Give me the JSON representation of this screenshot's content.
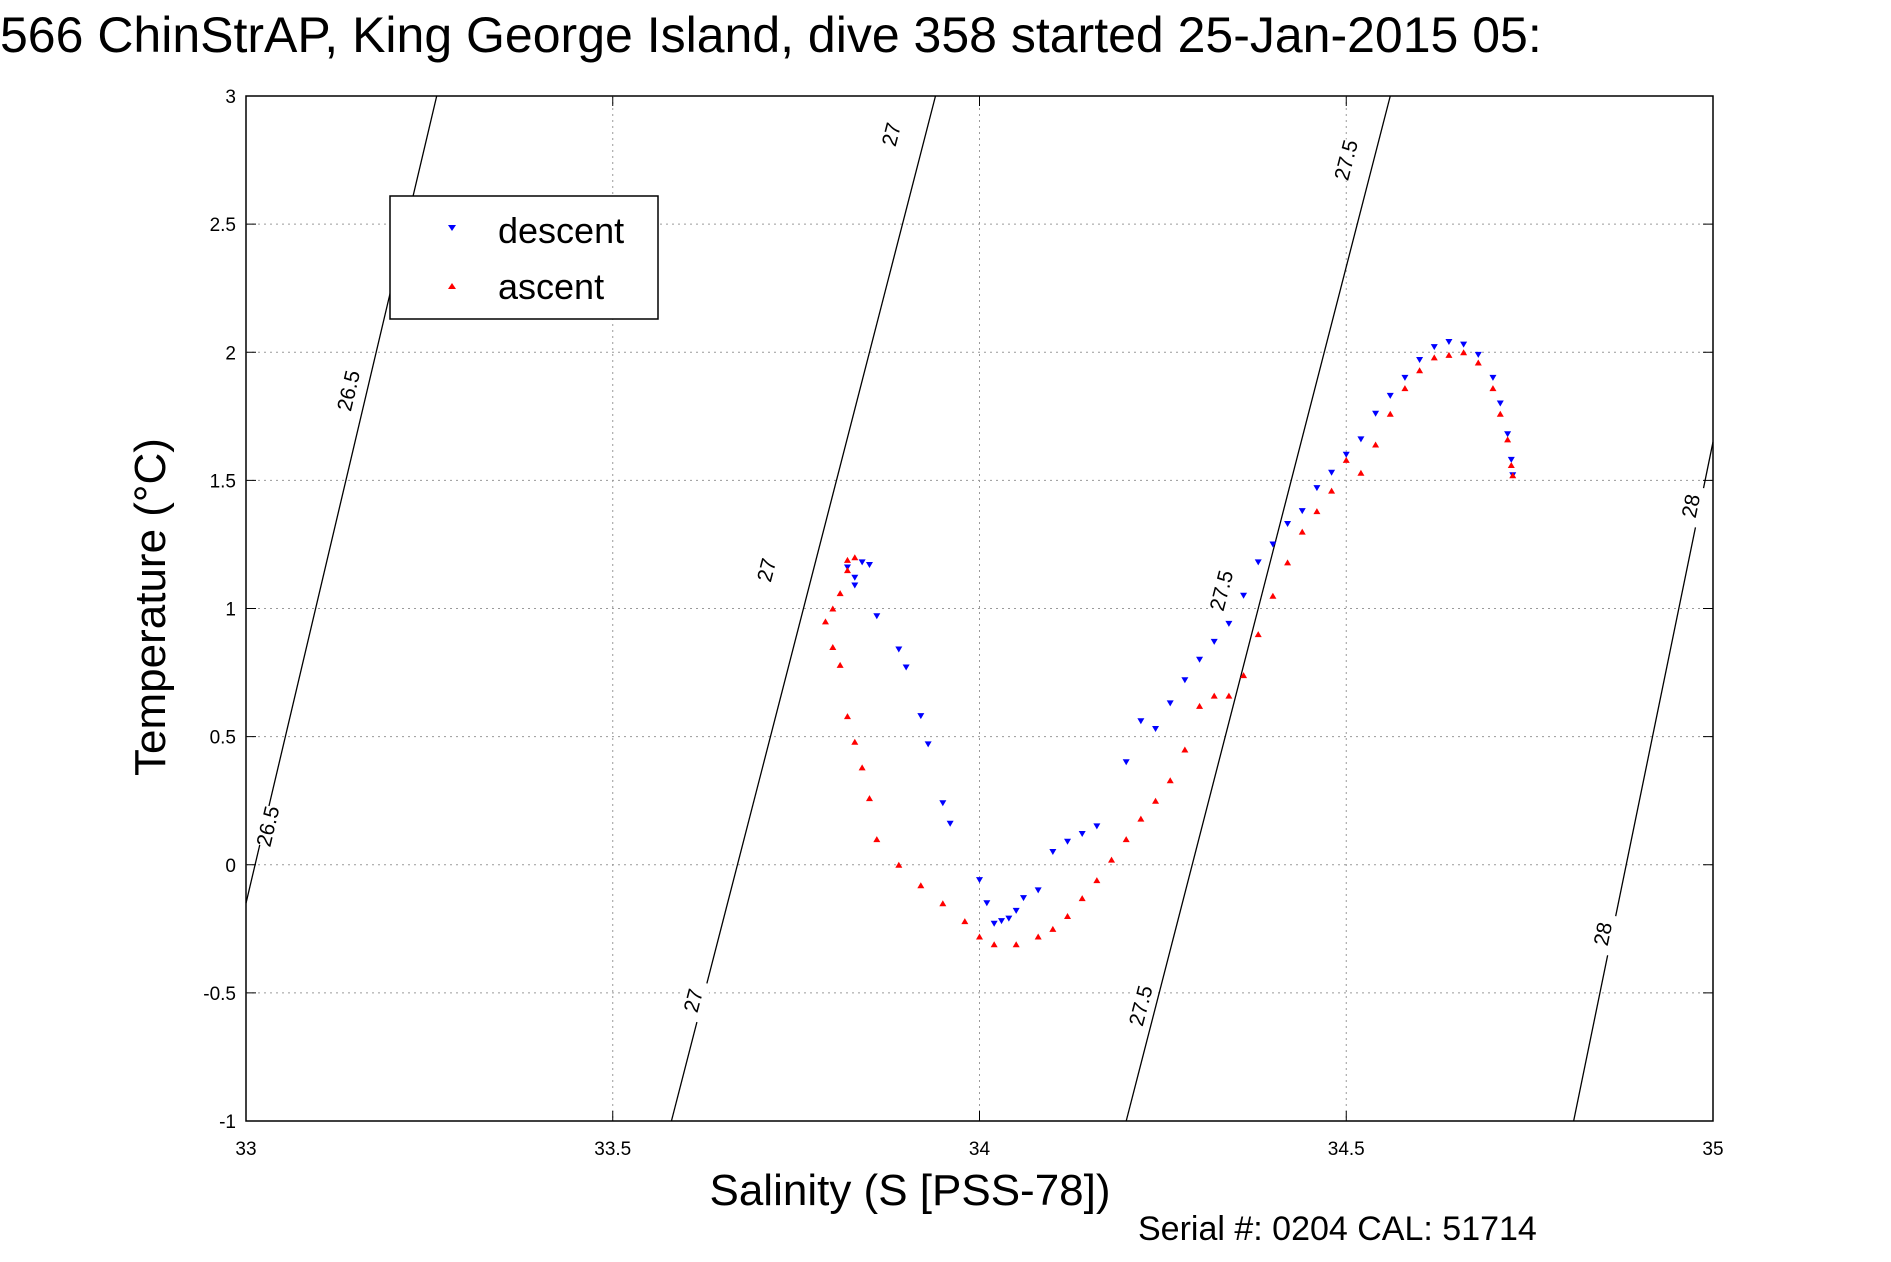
{
  "chart_data": {
    "type": "scatter",
    "title": "566 ChinStrAP, King George Island, dive 358 started 25-Jan-2015 05:",
    "xlabel": "Salinity (S [PSS-78])",
    "ylabel": "Temperature (°C)",
    "xlim": [
      33,
      35
    ],
    "ylim": [
      -1,
      3
    ],
    "xticks": [
      "33",
      "33.5",
      "34",
      "34.5",
      "35"
    ],
    "yticks": [
      "-1",
      "-0.5",
      "0",
      "0.5",
      "1",
      "1.5",
      "2",
      "2.5",
      "3"
    ],
    "grid": true,
    "legend_position": "top-left",
    "footer": "Serial #: 0204  CAL: 51714",
    "series": [
      {
        "name": "descent",
        "color": "#0000ff",
        "marker": "triangle-down",
        "points": [
          [
            33.82,
            1.16
          ],
          [
            33.83,
            1.12
          ],
          [
            33.83,
            1.09
          ],
          [
            33.84,
            1.18
          ],
          [
            33.85,
            1.17
          ],
          [
            33.86,
            0.97
          ],
          [
            33.89,
            0.84
          ],
          [
            33.9,
            0.77
          ],
          [
            33.92,
            0.58
          ],
          [
            33.93,
            0.47
          ],
          [
            33.95,
            0.24
          ],
          [
            33.96,
            0.16
          ],
          [
            34.0,
            -0.06
          ],
          [
            34.01,
            -0.15
          ],
          [
            34.02,
            -0.23
          ],
          [
            34.03,
            -0.22
          ],
          [
            34.04,
            -0.21
          ],
          [
            34.05,
            -0.18
          ],
          [
            34.06,
            -0.13
          ],
          [
            34.08,
            -0.1
          ],
          [
            34.1,
            0.05
          ],
          [
            34.12,
            0.09
          ],
          [
            34.14,
            0.12
          ],
          [
            34.16,
            0.15
          ],
          [
            34.2,
            0.4
          ],
          [
            34.22,
            0.56
          ],
          [
            34.24,
            0.53
          ],
          [
            34.26,
            0.63
          ],
          [
            34.28,
            0.72
          ],
          [
            34.3,
            0.8
          ],
          [
            34.32,
            0.87
          ],
          [
            34.34,
            0.94
          ],
          [
            34.36,
            1.05
          ],
          [
            34.38,
            1.18
          ],
          [
            34.4,
            1.25
          ],
          [
            34.42,
            1.33
          ],
          [
            34.44,
            1.38
          ],
          [
            34.46,
            1.47
          ],
          [
            34.48,
            1.53
          ],
          [
            34.5,
            1.6
          ],
          [
            34.52,
            1.66
          ],
          [
            34.54,
            1.76
          ],
          [
            34.56,
            1.83
          ],
          [
            34.58,
            1.9
          ],
          [
            34.6,
            1.97
          ],
          [
            34.62,
            2.02
          ],
          [
            34.64,
            2.04
          ],
          [
            34.66,
            2.03
          ],
          [
            34.68,
            1.99
          ],
          [
            34.7,
            1.9
          ],
          [
            34.71,
            1.8
          ],
          [
            34.72,
            1.68
          ],
          [
            34.725,
            1.58
          ],
          [
            34.727,
            1.52
          ]
        ]
      },
      {
        "name": "ascent",
        "color": "#ff0000",
        "marker": "triangle-up",
        "points": [
          [
            33.82,
            1.19
          ],
          [
            33.83,
            1.2
          ],
          [
            33.82,
            1.15
          ],
          [
            33.81,
            1.06
          ],
          [
            33.8,
            1.0
          ],
          [
            33.79,
            0.95
          ],
          [
            33.8,
            0.85
          ],
          [
            33.81,
            0.78
          ],
          [
            33.82,
            0.58
          ],
          [
            33.83,
            0.48
          ],
          [
            33.84,
            0.38
          ],
          [
            33.85,
            0.26
          ],
          [
            33.86,
            0.1
          ],
          [
            33.89,
            0.0
          ],
          [
            33.92,
            -0.08
          ],
          [
            33.95,
            -0.15
          ],
          [
            33.98,
            -0.22
          ],
          [
            34.0,
            -0.28
          ],
          [
            34.02,
            -0.31
          ],
          [
            34.05,
            -0.31
          ],
          [
            34.08,
            -0.28
          ],
          [
            34.1,
            -0.25
          ],
          [
            34.12,
            -0.2
          ],
          [
            34.14,
            -0.13
          ],
          [
            34.16,
            -0.06
          ],
          [
            34.18,
            0.02
          ],
          [
            34.2,
            0.1
          ],
          [
            34.22,
            0.18
          ],
          [
            34.24,
            0.25
          ],
          [
            34.26,
            0.33
          ],
          [
            34.28,
            0.45
          ],
          [
            34.3,
            0.62
          ],
          [
            34.32,
            0.66
          ],
          [
            34.34,
            0.66
          ],
          [
            34.36,
            0.74
          ],
          [
            34.38,
            0.9
          ],
          [
            34.4,
            1.05
          ],
          [
            34.42,
            1.18
          ],
          [
            34.44,
            1.3
          ],
          [
            34.46,
            1.38
          ],
          [
            34.48,
            1.46
          ],
          [
            34.5,
            1.58
          ],
          [
            34.52,
            1.53
          ],
          [
            34.54,
            1.64
          ],
          [
            34.56,
            1.76
          ],
          [
            34.58,
            1.86
          ],
          [
            34.6,
            1.93
          ],
          [
            34.62,
            1.98
          ],
          [
            34.64,
            1.99
          ],
          [
            34.66,
            2.0
          ],
          [
            34.68,
            1.96
          ],
          [
            34.7,
            1.86
          ],
          [
            34.71,
            1.76
          ],
          [
            34.72,
            1.66
          ],
          [
            34.725,
            1.56
          ],
          [
            34.727,
            1.52
          ]
        ]
      }
    ],
    "density_contours": [
      {
        "label": "26.5",
        "line": [
          [
            33.0,
            -0.15
          ],
          [
            33.26,
            3.0
          ]
        ],
        "label_points": [
          [
            33.03,
            0.15
          ],
          [
            33.14,
            1.85
          ]
        ]
      },
      {
        "label": "27",
        "line": [
          [
            33.58,
            -1.0
          ],
          [
            33.94,
            3.0
          ]
        ],
        "label_points": [
          [
            33.61,
            -0.53
          ],
          [
            33.71,
            1.15
          ],
          [
            33.88,
            2.85
          ]
        ]
      },
      {
        "label": "27.5",
        "line": [
          [
            34.2,
            -1.0
          ],
          [
            34.56,
            3.0
          ]
        ],
        "label_points": [
          [
            34.22,
            -0.55
          ],
          [
            34.33,
            1.07
          ],
          [
            34.5,
            2.75
          ]
        ]
      },
      {
        "label": "28",
        "line": [
          [
            34.81,
            -1.0
          ],
          [
            35.0,
            1.65
          ]
        ],
        "label_points": [
          [
            34.85,
            -0.27
          ],
          [
            34.97,
            1.4
          ]
        ]
      }
    ]
  }
}
